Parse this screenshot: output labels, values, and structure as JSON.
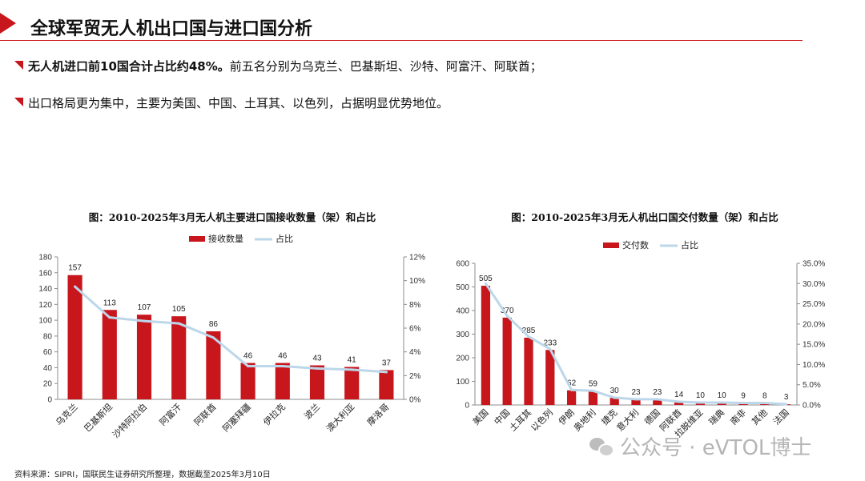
{
  "page": {
    "title": "全球军贸无人机出口国与进口国分析",
    "bullet1_strong": "无人机进口前10国合计占比约48%。",
    "bullet1_rest": "前五名分别为乌克兰、巴基斯坦、沙特、阿富汗、阿联酋；",
    "bullet2": "出口格局更为集中，主要为美国、中国、土耳其、以色列，占据明显优势地位。",
    "source": "资料来源：SIPRI，国联民生证券研究所整理，数据截至2025年3月10日",
    "watermark": "公众号 · eVTOL博士"
  },
  "colors": {
    "accent": "#c8161d",
    "bar": "#c8161d",
    "line": "#bcd7ea",
    "axis": "#8c8c8c"
  },
  "chart_data": [
    {
      "type": "bar",
      "title": "图：2010-2025年3月无人机主要进口国接收数量（架）和占比",
      "categories": [
        "乌克兰",
        "巴基斯坦",
        "沙特阿拉伯",
        "阿富汗",
        "阿联酋",
        "阿塞拜疆",
        "伊拉克",
        "波兰",
        "澳大利亚",
        "摩洛哥"
      ],
      "series": [
        {
          "name": "接收数量",
          "kind": "bar",
          "axis": "left",
          "values": [
            157,
            113,
            107,
            105,
            86,
            46,
            46,
            43,
            41,
            37
          ]
        },
        {
          "name": "占比",
          "kind": "line",
          "axis": "right",
          "values": [
            9.5,
            6.9,
            6.6,
            6.4,
            5.2,
            2.8,
            2.8,
            2.6,
            2.5,
            2.3
          ]
        }
      ],
      "ylim": [
        0,
        180
      ],
      "yticks": [
        "0",
        "20",
        "40",
        "60",
        "80",
        "100",
        "120",
        "140",
        "160",
        "180"
      ],
      "y2lim": [
        0,
        12
      ],
      "y2ticks": [
        "0%",
        "2%",
        "4%",
        "6%",
        "8%",
        "10%",
        "12%"
      ],
      "legend": "top-center",
      "grid": false
    },
    {
      "type": "bar",
      "title": "图：2010-2025年3月无人机出口国交付数量（架）和占比",
      "categories": [
        "美国",
        "中国",
        "土耳其",
        "以色列",
        "伊朗",
        "奥地利",
        "捷克",
        "意大利",
        "德国",
        "阿联酋",
        "拉脱维亚",
        "瑞典",
        "南非",
        "其他",
        "法国"
      ],
      "series": [
        {
          "name": "交付数",
          "kind": "bar",
          "axis": "left",
          "values": [
            505,
            370,
            285,
            233,
            62,
            59,
            30,
            23,
            23,
            14,
            10,
            10,
            9,
            8,
            3
          ]
        },
        {
          "name": "占比",
          "kind": "line",
          "axis": "right",
          "values": [
            30.0,
            22.0,
            16.9,
            13.8,
            3.7,
            3.5,
            1.8,
            1.4,
            1.4,
            0.8,
            0.6,
            0.6,
            0.5,
            0.5,
            0.2
          ]
        }
      ],
      "ylim": [
        0,
        600
      ],
      "yticks": [
        "0",
        "100",
        "200",
        "300",
        "400",
        "500",
        "600"
      ],
      "y2lim": [
        0,
        35
      ],
      "y2ticks": [
        "0.0%",
        "5.0%",
        "10.0%",
        "15.0%",
        "20.0%",
        "25.0%",
        "30.0%",
        "35.0%"
      ],
      "legend": "top-center",
      "grid": false
    }
  ]
}
